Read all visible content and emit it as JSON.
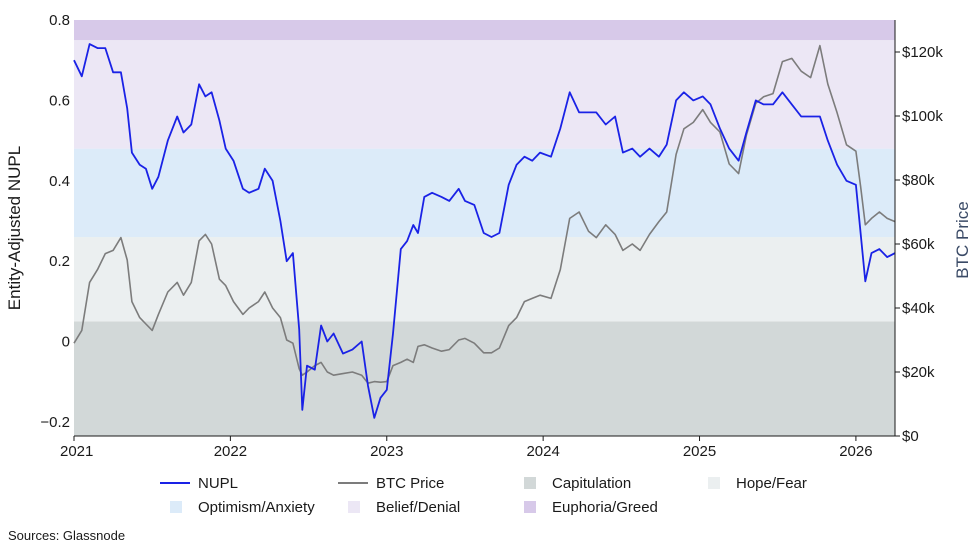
{
  "chart_data": {
    "type": "line",
    "y_left": {
      "label": "Entity-Adjusted NUPL",
      "ylim": [
        -0.235,
        0.8
      ],
      "ticks": [
        {
          "v": 0.8,
          "label": "0.8"
        },
        {
          "v": 0.6,
          "label": "0.6"
        },
        {
          "v": 0.4,
          "label": "0.4"
        },
        {
          "v": 0.2,
          "label": "0.2"
        },
        {
          "v": 0,
          "label": "0"
        },
        {
          "v": -0.2,
          "label": "−0.2"
        }
      ]
    },
    "y_right": {
      "label": "BTC Price",
      "color": "#3a4a66",
      "ylim": [
        0,
        130000
      ],
      "ticks": [
        {
          "v": 120000,
          "label": "$120k"
        },
        {
          "v": 100000,
          "label": "$100k"
        },
        {
          "v": 80000,
          "label": "$80k"
        },
        {
          "v": 60000,
          "label": "$60k"
        },
        {
          "v": 40000,
          "label": "$40k"
        },
        {
          "v": 20000,
          "label": "$20k"
        },
        {
          "v": 0,
          "label": "$0"
        }
      ]
    },
    "x_axis": {
      "xlim": [
        2021.0,
        2026.25
      ],
      "ticks": [
        {
          "v": 2021,
          "label": "2021"
        },
        {
          "v": 2022,
          "label": "2022"
        },
        {
          "v": 2023,
          "label": "2023"
        },
        {
          "v": 2024,
          "label": "2024"
        },
        {
          "v": 2025,
          "label": "2025"
        },
        {
          "v": 2026,
          "label": "2026"
        }
      ]
    },
    "zones": [
      {
        "name": "Capitulation",
        "from": -0.235,
        "to": 0.05,
        "color": "#d2d8d8"
      },
      {
        "name": "Hope/Fear",
        "from": 0.05,
        "to": 0.26,
        "color": "#ebeff0"
      },
      {
        "name": "Optimism/Anxiety",
        "from": 0.26,
        "to": 0.48,
        "color": "#dcebf9"
      },
      {
        "name": "Belief/Denial",
        "from": 0.48,
        "to": 0.75,
        "color": "#ece7f5"
      },
      {
        "name": "Euphoria/Greed",
        "from": 0.75,
        "to": 0.8,
        "color": "#d7c9e9"
      }
    ],
    "series": [
      {
        "name": "NUPL",
        "axis": "left",
        "color": "#1a22e6",
        "points": [
          [
            2021.0,
            0.7
          ],
          [
            2021.05,
            0.66
          ],
          [
            2021.1,
            0.74
          ],
          [
            2021.15,
            0.73
          ],
          [
            2021.2,
            0.73
          ],
          [
            2021.25,
            0.67
          ],
          [
            2021.3,
            0.67
          ],
          [
            2021.34,
            0.58
          ],
          [
            2021.37,
            0.47
          ],
          [
            2021.42,
            0.44
          ],
          [
            2021.46,
            0.43
          ],
          [
            2021.5,
            0.38
          ],
          [
            2021.54,
            0.41
          ],
          [
            2021.6,
            0.5
          ],
          [
            2021.66,
            0.56
          ],
          [
            2021.7,
            0.52
          ],
          [
            2021.75,
            0.54
          ],
          [
            2021.8,
            0.64
          ],
          [
            2021.84,
            0.61
          ],
          [
            2021.88,
            0.62
          ],
          [
            2021.93,
            0.55
          ],
          [
            2021.97,
            0.48
          ],
          [
            2022.02,
            0.45
          ],
          [
            2022.08,
            0.38
          ],
          [
            2022.12,
            0.37
          ],
          [
            2022.18,
            0.38
          ],
          [
            2022.22,
            0.43
          ],
          [
            2022.27,
            0.4
          ],
          [
            2022.32,
            0.3
          ],
          [
            2022.36,
            0.2
          ],
          [
            2022.4,
            0.22
          ],
          [
            2022.44,
            0.03
          ],
          [
            2022.46,
            -0.17
          ],
          [
            2022.49,
            -0.06
          ],
          [
            2022.54,
            -0.07
          ],
          [
            2022.58,
            0.04
          ],
          [
            2022.62,
            0.0
          ],
          [
            2022.66,
            0.02
          ],
          [
            2022.72,
            -0.03
          ],
          [
            2022.78,
            -0.02
          ],
          [
            2022.84,
            0.0
          ],
          [
            2022.88,
            -0.11
          ],
          [
            2022.92,
            -0.19
          ],
          [
            2022.96,
            -0.14
          ],
          [
            2023.0,
            -0.12
          ],
          [
            2023.04,
            0.02
          ],
          [
            2023.09,
            0.23
          ],
          [
            2023.13,
            0.25
          ],
          [
            2023.17,
            0.29
          ],
          [
            2023.2,
            0.27
          ],
          [
            2023.24,
            0.36
          ],
          [
            2023.29,
            0.37
          ],
          [
            2023.35,
            0.36
          ],
          [
            2023.4,
            0.35
          ],
          [
            2023.46,
            0.38
          ],
          [
            2023.5,
            0.35
          ],
          [
            2023.56,
            0.34
          ],
          [
            2023.62,
            0.27
          ],
          [
            2023.67,
            0.26
          ],
          [
            2023.72,
            0.27
          ],
          [
            2023.78,
            0.39
          ],
          [
            2023.83,
            0.44
          ],
          [
            2023.88,
            0.46
          ],
          [
            2023.93,
            0.45
          ],
          [
            2023.98,
            0.47
          ],
          [
            2024.05,
            0.46
          ],
          [
            2024.11,
            0.53
          ],
          [
            2024.17,
            0.62
          ],
          [
            2024.23,
            0.57
          ],
          [
            2024.29,
            0.57
          ],
          [
            2024.34,
            0.57
          ],
          [
            2024.4,
            0.54
          ],
          [
            2024.46,
            0.56
          ],
          [
            2024.51,
            0.47
          ],
          [
            2024.57,
            0.48
          ],
          [
            2024.62,
            0.46
          ],
          [
            2024.68,
            0.48
          ],
          [
            2024.74,
            0.46
          ],
          [
            2024.79,
            0.49
          ],
          [
            2024.85,
            0.6
          ],
          [
            2024.9,
            0.62
          ],
          [
            2024.96,
            0.6
          ],
          [
            2025.02,
            0.61
          ],
          [
            2025.07,
            0.59
          ],
          [
            2025.13,
            0.53
          ],
          [
            2025.19,
            0.48
          ],
          [
            2025.25,
            0.45
          ],
          [
            2025.3,
            0.52
          ],
          [
            2025.36,
            0.6
          ],
          [
            2025.41,
            0.59
          ],
          [
            2025.47,
            0.59
          ],
          [
            2025.53,
            0.62
          ],
          [
            2025.59,
            0.59
          ],
          [
            2025.65,
            0.56
          ],
          [
            2025.71,
            0.56
          ],
          [
            2025.77,
            0.56
          ],
          [
            2025.82,
            0.5
          ],
          [
            2025.88,
            0.44
          ],
          [
            2025.94,
            0.4
          ],
          [
            2026.0,
            0.39
          ],
          [
            2026.03,
            0.27
          ],
          [
            2026.06,
            0.15
          ],
          [
            2026.1,
            0.22
          ],
          [
            2026.15,
            0.23
          ],
          [
            2026.2,
            0.21
          ],
          [
            2026.25,
            0.22
          ]
        ]
      },
      {
        "name": "BTC Price",
        "axis": "right",
        "color": "#7c7c7c",
        "points": [
          [
            2021.0,
            29000
          ],
          [
            2021.05,
            33000
          ],
          [
            2021.1,
            48000
          ],
          [
            2021.15,
            52000
          ],
          [
            2021.2,
            57000
          ],
          [
            2021.25,
            58000
          ],
          [
            2021.3,
            62000
          ],
          [
            2021.34,
            55000
          ],
          [
            2021.37,
            42000
          ],
          [
            2021.42,
            37000
          ],
          [
            2021.46,
            35000
          ],
          [
            2021.5,
            33000
          ],
          [
            2021.54,
            38000
          ],
          [
            2021.6,
            45000
          ],
          [
            2021.66,
            48000
          ],
          [
            2021.7,
            44000
          ],
          [
            2021.75,
            48000
          ],
          [
            2021.8,
            61000
          ],
          [
            2021.84,
            63000
          ],
          [
            2021.88,
            60000
          ],
          [
            2021.93,
            49000
          ],
          [
            2021.97,
            47000
          ],
          [
            2022.02,
            42000
          ],
          [
            2022.08,
            38000
          ],
          [
            2022.12,
            40000
          ],
          [
            2022.18,
            42000
          ],
          [
            2022.22,
            45000
          ],
          [
            2022.27,
            40000
          ],
          [
            2022.32,
            37000
          ],
          [
            2022.36,
            30000
          ],
          [
            2022.4,
            29000
          ],
          [
            2022.44,
            21000
          ],
          [
            2022.46,
            19000
          ],
          [
            2022.49,
            20000
          ],
          [
            2022.54,
            22000
          ],
          [
            2022.58,
            23000
          ],
          [
            2022.62,
            20000
          ],
          [
            2022.66,
            19000
          ],
          [
            2022.72,
            19500
          ],
          [
            2022.78,
            20000
          ],
          [
            2022.84,
            19000
          ],
          [
            2022.88,
            16500
          ],
          [
            2022.92,
            17000
          ],
          [
            2022.96,
            16800
          ],
          [
            2023.0,
            17000
          ],
          [
            2023.04,
            22000
          ],
          [
            2023.09,
            23000
          ],
          [
            2023.13,
            24000
          ],
          [
            2023.17,
            23000
          ],
          [
            2023.2,
            28000
          ],
          [
            2023.24,
            28500
          ],
          [
            2023.29,
            27500
          ],
          [
            2023.35,
            26500
          ],
          [
            2023.4,
            27000
          ],
          [
            2023.46,
            30000
          ],
          [
            2023.5,
            30500
          ],
          [
            2023.56,
            29000
          ],
          [
            2023.62,
            26000
          ],
          [
            2023.67,
            26000
          ],
          [
            2023.72,
            27500
          ],
          [
            2023.78,
            34500
          ],
          [
            2023.83,
            37000
          ],
          [
            2023.88,
            42000
          ],
          [
            2023.93,
            43000
          ],
          [
            2023.98,
            44000
          ],
          [
            2024.05,
            43000
          ],
          [
            2024.11,
            52000
          ],
          [
            2024.17,
            68000
          ],
          [
            2024.23,
            70000
          ],
          [
            2024.29,
            64000
          ],
          [
            2024.34,
            62000
          ],
          [
            2024.4,
            66000
          ],
          [
            2024.46,
            63000
          ],
          [
            2024.51,
            58000
          ],
          [
            2024.57,
            60000
          ],
          [
            2024.62,
            58000
          ],
          [
            2024.68,
            63000
          ],
          [
            2024.74,
            67000
          ],
          [
            2024.79,
            70000
          ],
          [
            2024.85,
            88000
          ],
          [
            2024.9,
            96000
          ],
          [
            2024.96,
            98000
          ],
          [
            2025.02,
            102000
          ],
          [
            2025.07,
            98000
          ],
          [
            2025.13,
            95000
          ],
          [
            2025.19,
            85000
          ],
          [
            2025.25,
            82000
          ],
          [
            2025.3,
            94000
          ],
          [
            2025.36,
            104000
          ],
          [
            2025.41,
            106000
          ],
          [
            2025.47,
            107000
          ],
          [
            2025.53,
            117000
          ],
          [
            2025.59,
            118000
          ],
          [
            2025.65,
            114000
          ],
          [
            2025.71,
            112000
          ],
          [
            2025.77,
            122000
          ],
          [
            2025.82,
            110000
          ],
          [
            2025.88,
            101000
          ],
          [
            2025.94,
            91000
          ],
          [
            2026.0,
            89000
          ],
          [
            2026.03,
            78000
          ],
          [
            2026.06,
            66000
          ],
          [
            2026.1,
            68000
          ],
          [
            2026.15,
            70000
          ],
          [
            2026.2,
            68000
          ],
          [
            2026.25,
            67000
          ]
        ]
      }
    ],
    "legend": [
      {
        "name": "NUPL",
        "kind": "line",
        "color": "#1a22e6"
      },
      {
        "name": "BTC Price",
        "kind": "line",
        "color": "#7c7c7c"
      },
      {
        "name": "Capitulation",
        "kind": "box",
        "color": "#d2d8d8"
      },
      {
        "name": "Hope/Fear",
        "kind": "box",
        "color": "#ebeff0"
      },
      {
        "name": "Optimism/Anxiety",
        "kind": "box",
        "color": "#dcebf9"
      },
      {
        "name": "Belief/Denial",
        "kind": "box",
        "color": "#ece7f5"
      },
      {
        "name": "Euphoria/Greed",
        "kind": "box",
        "color": "#d7c9e9"
      }
    ],
    "legend_placement": "bottom",
    "grid": false
  },
  "source": "Sources: Glassnode"
}
